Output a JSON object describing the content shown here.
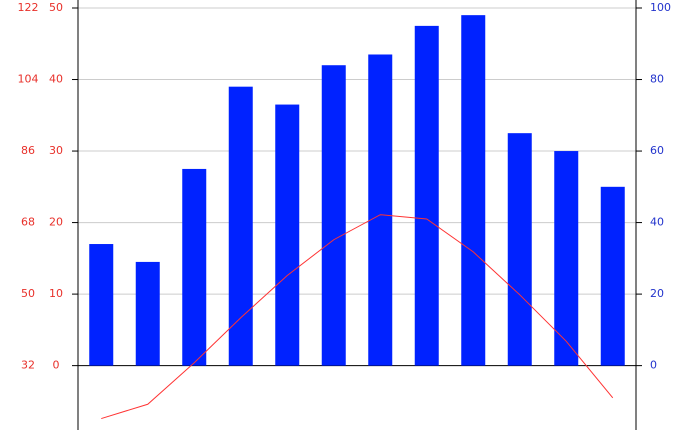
{
  "chart_data": {
    "type": "bar",
    "categories": [
      null,
      null,
      null,
      null,
      null,
      null,
      null,
      null,
      null,
      null,
      null,
      null
    ],
    "series": [
      {
        "type": "bar",
        "axis": "y2",
        "color": "#0022ff",
        "values": [
          34,
          29,
          55,
          78,
          73,
          84,
          87,
          95,
          98,
          65,
          60,
          50
        ]
      },
      {
        "type": "line",
        "axis": "y",
        "color": "#ff3333",
        "values": [
          -7.4,
          -5.4,
          0.4,
          6.7,
          12.6,
          17.6,
          21.1,
          20.5,
          15.9,
          9.9,
          3.4,
          -4.5
        ]
      }
    ],
    "ylim": [
      -9,
      50
    ],
    "yticks": [
      0,
      10,
      20,
      30,
      40,
      50
    ],
    "y3lim": [
      15.8,
      122
    ],
    "y3ticks": [
      32,
      50,
      68,
      86,
      104,
      122
    ],
    "y2lim": [
      -18,
      100
    ],
    "y2ticks": [
      0,
      20,
      40,
      60,
      80,
      100
    ],
    "grid": true,
    "y_color": "#e8302a",
    "y2_color": "#2233cc"
  }
}
